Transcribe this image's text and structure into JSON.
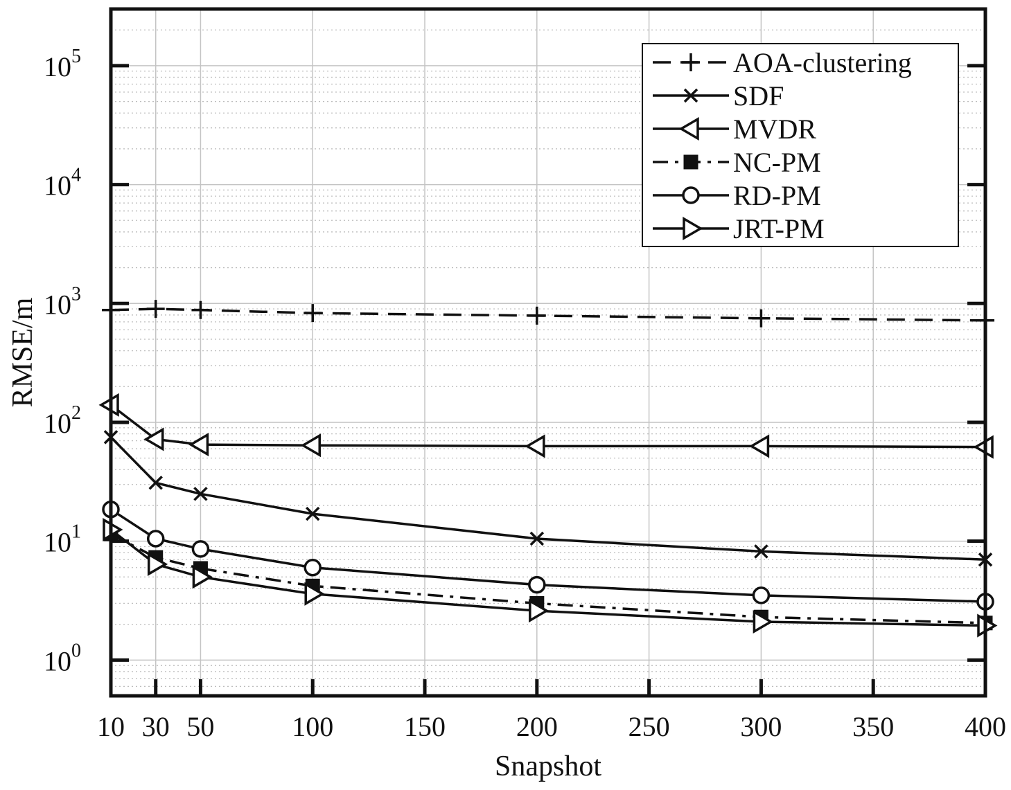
{
  "chart_data": {
    "type": "line",
    "xlabel": "Snapshot",
    "ylabel": "RMSE/m",
    "xlim": [
      10,
      400
    ],
    "ylim": [
      0.5,
      300000
    ],
    "yscale": "log",
    "x_ticks": [
      10,
      30,
      50,
      100,
      150,
      200,
      250,
      300,
      350,
      400
    ],
    "y_ticks": [
      {
        "value": 1,
        "base": "10",
        "exp": "0"
      },
      {
        "value": 10,
        "base": "10",
        "exp": "1"
      },
      {
        "value": 100,
        "base": "10",
        "exp": "2"
      },
      {
        "value": 1000,
        "base": "10",
        "exp": "3"
      },
      {
        "value": 10000,
        "base": "10",
        "exp": "4"
      },
      {
        "value": 100000,
        "base": "10",
        "exp": "5"
      }
    ],
    "grid": true,
    "legend_position": "top-right",
    "series": [
      {
        "name": "AOA-clustering",
        "line": "dash",
        "marker": "plus",
        "x": [
          10,
          30,
          50,
          100,
          200,
          300,
          400
        ],
        "y": [
          880,
          900,
          880,
          830,
          790,
          750,
          720
        ]
      },
      {
        "name": "SDF",
        "line": "solid",
        "marker": "x",
        "x": [
          10,
          30,
          50,
          100,
          200,
          300,
          400
        ],
        "y": [
          75,
          31,
          25,
          17,
          10.5,
          8.2,
          7.0
        ]
      },
      {
        "name": "MVDR",
        "line": "solid",
        "marker": "tri-left",
        "x": [
          10,
          30,
          50,
          100,
          200,
          300,
          400
        ],
        "y": [
          140,
          72,
          65,
          64,
          63,
          63,
          62
        ]
      },
      {
        "name": "NC-PM",
        "line": "dashdot",
        "marker": "square",
        "x": [
          10,
          30,
          50,
          100,
          200,
          300,
          400
        ],
        "y": [
          11.5,
          7.3,
          5.9,
          4.2,
          3.0,
          2.3,
          2.05
        ]
      },
      {
        "name": "RD-PM",
        "line": "solid",
        "marker": "circle",
        "x": [
          10,
          30,
          50,
          100,
          200,
          300,
          400
        ],
        "y": [
          18.5,
          10.5,
          8.6,
          6.0,
          4.3,
          3.5,
          3.1
        ]
      },
      {
        "name": "JRT-PM",
        "line": "solid",
        "marker": "tri-right",
        "x": [
          10,
          30,
          50,
          100,
          200,
          300,
          400
        ],
        "y": [
          12.5,
          6.4,
          5.0,
          3.6,
          2.6,
          2.1,
          1.95
        ]
      }
    ]
  }
}
